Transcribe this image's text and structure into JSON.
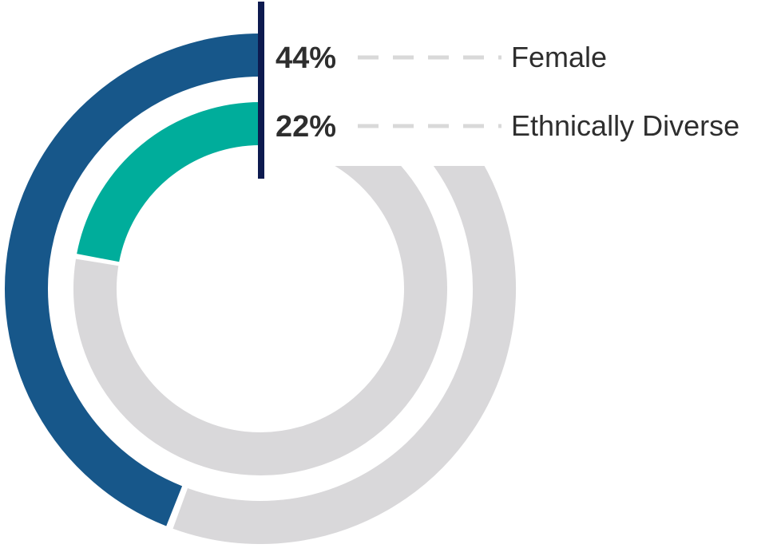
{
  "chart_data": {
    "type": "radial-bar",
    "unit": "%",
    "series": [
      {
        "name": "Female",
        "value": 44,
        "value_label": "44%",
        "color": "#17578a"
      },
      {
        "name": "Ethnically Diverse",
        "value": 22,
        "value_label": "22%",
        "color": "#00ad9b"
      }
    ],
    "track_color": "#d9d8da",
    "marker_color": "#0d1a4f",
    "leader_color": "#d9d9d9",
    "text_color": "#2e2e2e",
    "legend_placement": "right"
  }
}
